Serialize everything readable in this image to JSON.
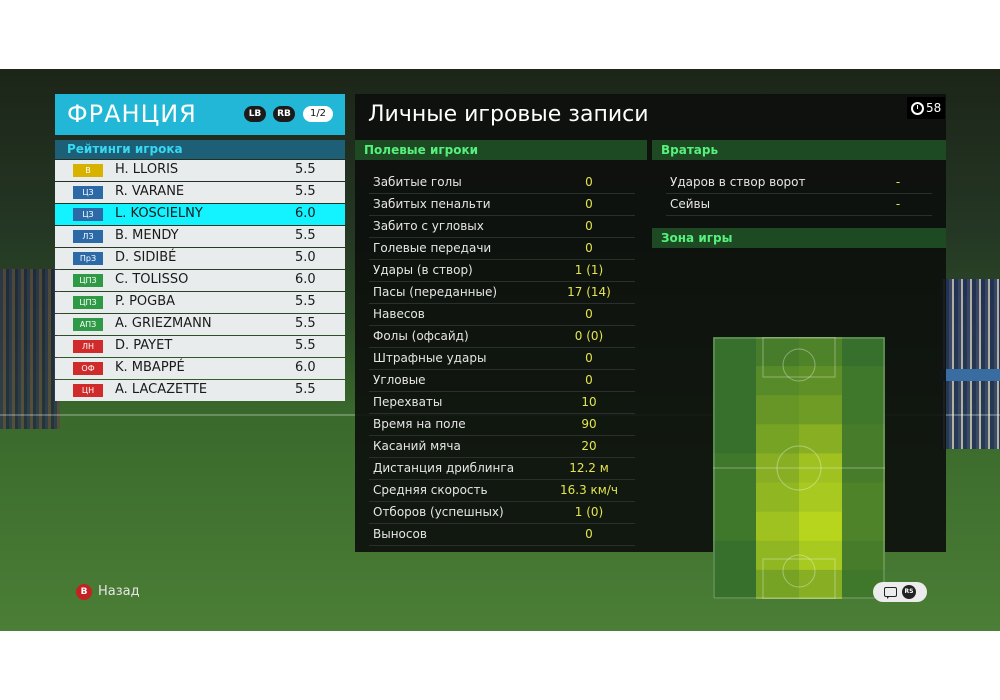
{
  "team": {
    "name": "ФРАНЦИЯ",
    "lb": "LB",
    "rb": "RB",
    "page": "1/2",
    "ratings_title": "Рейтинги игрока",
    "players": [
      {
        "pos": "В",
        "pos_color": "#d7b300",
        "name": "H. LLORIS",
        "rating": "5.5"
      },
      {
        "pos": "ЦЗ",
        "pos_color": "#2b6aa6",
        "name": "R. VARANE",
        "rating": "5.5"
      },
      {
        "pos": "ЦЗ",
        "pos_color": "#2b6aa6",
        "name": "L. KOSCIELNY",
        "rating": "6.0"
      },
      {
        "pos": "ЛЗ",
        "pos_color": "#2b6aa6",
        "name": "B. MENDY",
        "rating": "5.5"
      },
      {
        "pos": "ПрЗ",
        "pos_color": "#2b6aa6",
        "name": "D. SIDIBÉ",
        "rating": "5.0"
      },
      {
        "pos": "ЦПЗ",
        "pos_color": "#2f9a45",
        "name": "C. TOLISSO",
        "rating": "6.0"
      },
      {
        "pos": "ЦПЗ",
        "pos_color": "#2f9a45",
        "name": "P. POGBA",
        "rating": "5.5"
      },
      {
        "pos": "АПЗ",
        "pos_color": "#2f9a45",
        "name": "A. GRIEZMANN",
        "rating": "5.5"
      },
      {
        "pos": "ЛН",
        "pos_color": "#cf2b2b",
        "name": "D. PAYET",
        "rating": "5.5"
      },
      {
        "pos": "ОФ",
        "pos_color": "#cf2b2b",
        "name": "K. MBAPPÉ",
        "rating": "6.0"
      },
      {
        "pos": "ЦН",
        "pos_color": "#cf2b2b",
        "name": "A. LACAZETTE",
        "rating": "5.5"
      }
    ],
    "selected_index": 2
  },
  "main": {
    "title": "Личные игровые записи",
    "timer": "58",
    "field_players_title": "Полевые игроки",
    "goalkeeper_title": "Вратарь",
    "zone_title": "Зона игры",
    "stats": [
      {
        "label": "Забитые голы",
        "value": "0"
      },
      {
        "label": "Забитых пенальти",
        "value": "0"
      },
      {
        "label": "Забито с угловых",
        "value": "0"
      },
      {
        "label": "Голевые передачи",
        "value": "0"
      },
      {
        "label": "Удары (в створ)",
        "value": "1 (1)"
      },
      {
        "label": "Пасы (переданные)",
        "value": "17 (14)"
      },
      {
        "label": "Навесов",
        "value": "0"
      },
      {
        "label": "Фолы (офсайд)",
        "value": "0 (0)"
      },
      {
        "label": "Штрафные удары",
        "value": "0"
      },
      {
        "label": "Угловые",
        "value": "0"
      },
      {
        "label": "Перехваты",
        "value": "10"
      },
      {
        "label": "Время на поле",
        "value": "90"
      },
      {
        "label": "Касаний мяча",
        "value": "20"
      },
      {
        "label": "Дистанция дриблинга",
        "value": "12.2 м"
      },
      {
        "label": "Средняя скорость",
        "value": "16.3 км/ч"
      },
      {
        "label": "Отборов (успешных)",
        "value": "1 (0)"
      },
      {
        "label": "Выносов",
        "value": "0"
      }
    ],
    "gk_stats": [
      {
        "label": "Ударов в створ ворот",
        "value": "-"
      },
      {
        "label": "Сейвы",
        "value": "-"
      }
    ],
    "heatmap": {
      "cols": 4,
      "rows": 9,
      "intensity": [
        [
          0.05,
          0.15,
          0.2,
          0.05
        ],
        [
          0.05,
          0.25,
          0.3,
          0.1
        ],
        [
          0.05,
          0.35,
          0.4,
          0.1
        ],
        [
          0.05,
          0.45,
          0.55,
          0.15
        ],
        [
          0.1,
          0.55,
          0.7,
          0.15
        ],
        [
          0.1,
          0.6,
          0.75,
          0.2
        ],
        [
          0.1,
          0.7,
          0.85,
          0.2
        ],
        [
          0.05,
          0.6,
          0.75,
          0.15
        ],
        [
          0.05,
          0.45,
          0.55,
          0.1
        ]
      ]
    }
  },
  "footer": {
    "back_label": "Назад",
    "back_button": "B",
    "rs_button": "RS"
  },
  "colors": {
    "accent_cyan": "#22b7d6",
    "selected_row": "#12f2ff",
    "value_yellow": "#e4e54f",
    "section_green": "#56f07c"
  }
}
